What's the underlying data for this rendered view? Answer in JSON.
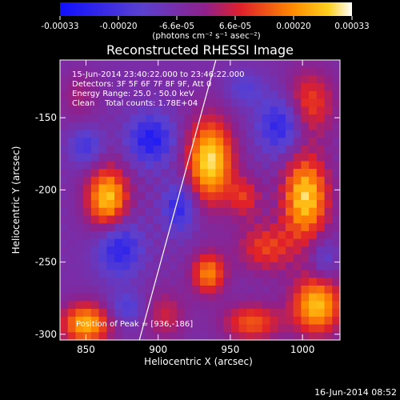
{
  "chart_data": {
    "type": "heatmap",
    "title": "Reconstructed RHESSI Image",
    "xlabel": "Heliocentric X (arcsec)",
    "ylabel": "Heliocentric Y (arcsec)",
    "xlim": [
      832,
      1026
    ],
    "ylim": [
      -304,
      -110
    ],
    "xticks": [
      850,
      900,
      950,
      1000
    ],
    "yticks": [
      -150,
      -200,
      -250,
      -300
    ],
    "colorbar": {
      "min": -0.00033,
      "max": 0.00033,
      "ticks": [
        "-0.00033",
        "-0.00020",
        "-6.6e-05",
        "6.6e-05",
        "0.00020",
        "0.00033"
      ],
      "units_label": "(photons cm⁻² s⁻¹ asec⁻²)"
    },
    "annotations": [
      "15-Jun-2014 23:40:22.000 to 23:46:22.000",
      "Detectors: 3F 5F 6F 7F 8F 9F, Att 0",
      "Energy Range: 25.0 - 50.0 keV",
      "Clean    Total counts: 1.78E+04"
    ],
    "peak_label": "Position of Peak = [936,-186]",
    "peak": [
      936,
      -186
    ],
    "limb_line": [
      [
        887,
        -304
      ],
      [
        940,
        -110
      ]
    ],
    "blobs": [
      {
        "x": 936,
        "y": -180,
        "sx": 11,
        "sy": 20,
        "amp": 0.00036
      },
      {
        "x": 865,
        "y": -206,
        "sx": 10,
        "sy": 15,
        "amp": 0.00033
      },
      {
        "x": 1002,
        "y": -205,
        "sx": 11,
        "sy": 20,
        "amp": 0.00034
      },
      {
        "x": 1010,
        "y": -280,
        "sx": 12,
        "sy": 14,
        "amp": 0.00032
      },
      {
        "x": 850,
        "y": -293,
        "sx": 12,
        "sy": 10,
        "amp": 0.0003
      },
      {
        "x": 935,
        "y": -258,
        "sx": 8,
        "sy": 10,
        "amp": 0.00025
      },
      {
        "x": 965,
        "y": -292,
        "sx": 14,
        "sy": 9,
        "amp": 0.0002
      },
      {
        "x": 975,
        "y": -240,
        "sx": 14,
        "sy": 12,
        "amp": 0.00017
      },
      {
        "x": 960,
        "y": -205,
        "sx": 8,
        "sy": 10,
        "amp": 0.00015
      },
      {
        "x": 905,
        "y": -287,
        "sx": 10,
        "sy": 12,
        "amp": 0.00012
      },
      {
        "x": 845,
        "y": -135,
        "sx": 9,
        "sy": 12,
        "amp": 8e-05
      },
      {
        "x": 1005,
        "y": -140,
        "sx": 12,
        "sy": 16,
        "amp": 0.00018
      },
      {
        "x": 895,
        "y": -165,
        "sx": 11,
        "sy": 12,
        "amp": -0.00022
      },
      {
        "x": 873,
        "y": -240,
        "sx": 11,
        "sy": 14,
        "amp": -0.0002
      },
      {
        "x": 985,
        "y": -155,
        "sx": 11,
        "sy": 14,
        "amp": -0.0002
      },
      {
        "x": 915,
        "y": -212,
        "sx": 8,
        "sy": 12,
        "amp": -0.00018
      },
      {
        "x": 850,
        "y": -170,
        "sx": 8,
        "sy": 9,
        "amp": -0.00014
      },
      {
        "x": 960,
        "y": -130,
        "sx": 9,
        "sy": 8,
        "amp": -0.0001
      },
      {
        "x": 878,
        "y": -282,
        "sx": 9,
        "sy": 8,
        "amp": -0.00012
      },
      {
        "x": 1015,
        "y": -248,
        "sx": 6,
        "sy": 10,
        "amp": -0.0001
      }
    ],
    "baseline": -6e-05
  },
  "footer": {
    "date": "16-Jun-2014 08:52"
  }
}
